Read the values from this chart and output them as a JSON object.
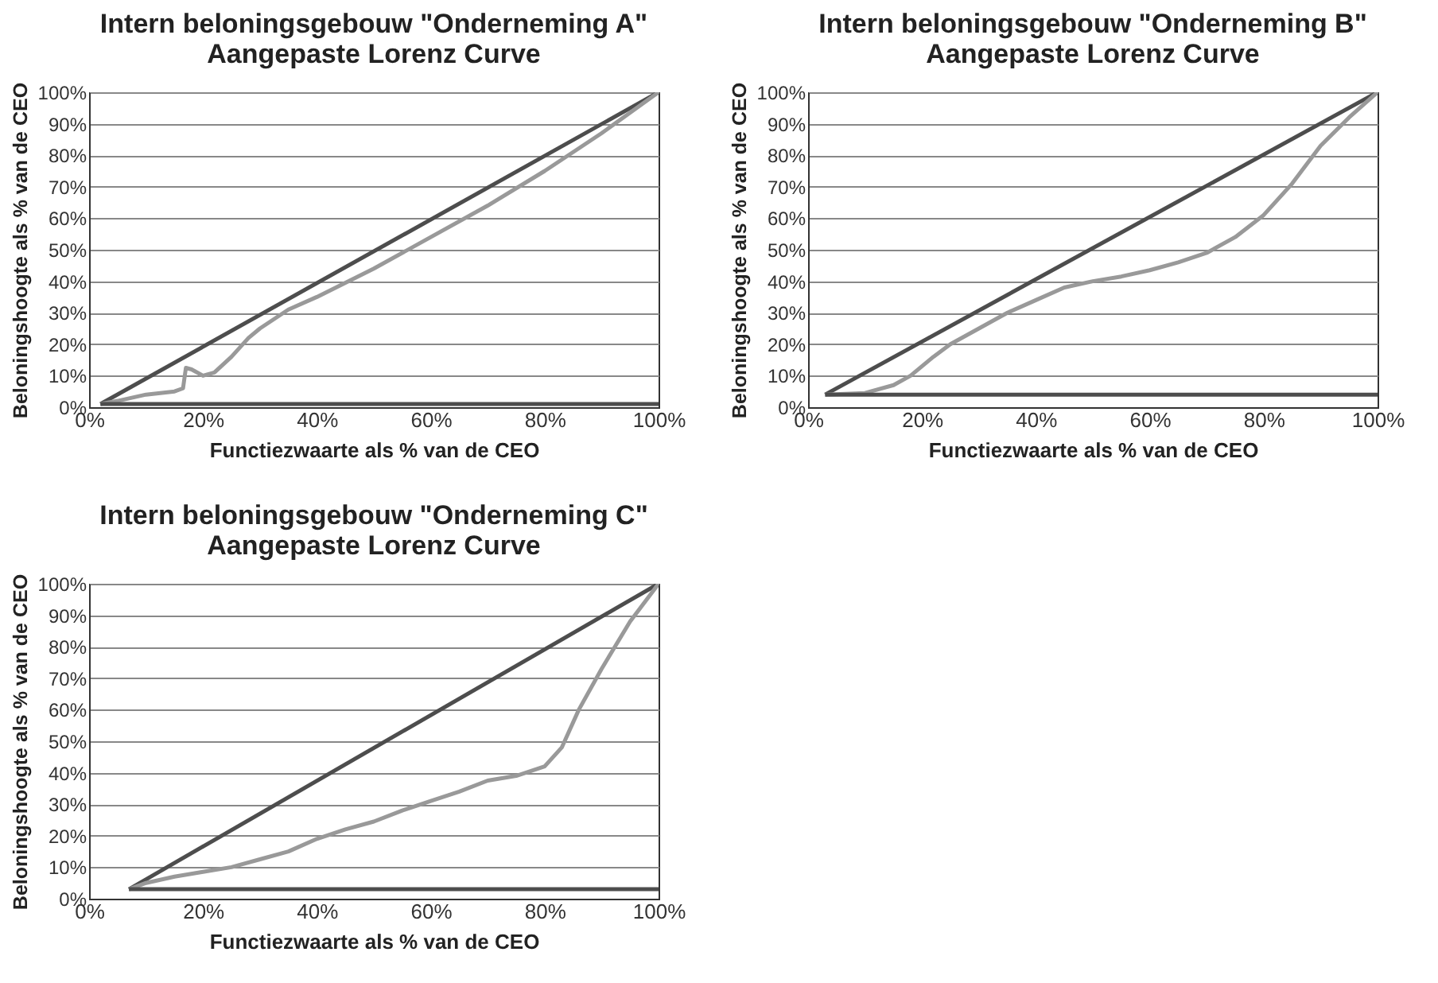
{
  "chart_data": [
    {
      "type": "line",
      "title": "Intern beloningsgebouw \"Onderneming A\"",
      "subtitle": "Aangepaste Lorenz Curve",
      "xlabel": "Functiezwaarte als % van de CEO",
      "ylabel": "Beloningshoogte als % van de CEO",
      "xlim": [
        0,
        100
      ],
      "ylim": [
        0,
        100
      ],
      "xticks": [
        {
          "value": 0,
          "label": "0%"
        },
        {
          "value": 20,
          "label": "20%"
        },
        {
          "value": 40,
          "label": "40%"
        },
        {
          "value": 60,
          "label": "60%"
        },
        {
          "value": 80,
          "label": "80%"
        },
        {
          "value": 100,
          "label": "100%"
        }
      ],
      "yticks": [
        {
          "value": 0,
          "label": "0%"
        },
        {
          "value": 10,
          "label": "10%"
        },
        {
          "value": 20,
          "label": "20%"
        },
        {
          "value": 30,
          "label": "30%"
        },
        {
          "value": 40,
          "label": "40%"
        },
        {
          "value": 50,
          "label": "50%"
        },
        {
          "value": 60,
          "label": "60%"
        },
        {
          "value": 70,
          "label": "70%"
        },
        {
          "value": 80,
          "label": "80%"
        },
        {
          "value": 90,
          "label": "90%"
        },
        {
          "value": 100,
          "label": "100%"
        }
      ],
      "grid": "y",
      "series": [
        {
          "color": "#4d4d4d",
          "x": [
            2,
            100
          ],
          "values": [
            1,
            100
          ]
        },
        {
          "color": "#999999",
          "x": [
            2,
            5,
            10,
            15,
            16.5,
            17,
            18,
            20,
            22,
            25,
            28,
            30,
            35,
            40,
            50,
            60,
            70,
            80,
            90,
            100
          ],
          "values": [
            1,
            2,
            4,
            5,
            6,
            12.5,
            12,
            10,
            11,
            16,
            22,
            25,
            31,
            35,
            44,
            54,
            64,
            75,
            87,
            100
          ]
        },
        {
          "color": "#4d4d4d",
          "x": [
            2,
            100
          ],
          "values": [
            1,
            1
          ]
        }
      ]
    },
    {
      "type": "line",
      "title": "Intern beloningsgebouw \"Onderneming B\"",
      "subtitle": "Aangepaste Lorenz Curve",
      "xlabel": "Functiezwaarte als % van de CEO",
      "ylabel": "Beloningshoogte als % van de CEO",
      "xlim": [
        0,
        100
      ],
      "ylim": [
        0,
        100
      ],
      "xticks": [
        {
          "value": 0,
          "label": "0%"
        },
        {
          "value": 20,
          "label": "20%"
        },
        {
          "value": 40,
          "label": "40%"
        },
        {
          "value": 60,
          "label": "60%"
        },
        {
          "value": 80,
          "label": "80%"
        },
        {
          "value": 100,
          "label": "100%"
        }
      ],
      "yticks": [
        {
          "value": 0,
          "label": "0%"
        },
        {
          "value": 10,
          "label": "10%"
        },
        {
          "value": 20,
          "label": "20%"
        },
        {
          "value": 30,
          "label": "30%"
        },
        {
          "value": 40,
          "label": "40%"
        },
        {
          "value": 50,
          "label": "50%"
        },
        {
          "value": 60,
          "label": "60%"
        },
        {
          "value": 70,
          "label": "70%"
        },
        {
          "value": 80,
          "label": "80%"
        },
        {
          "value": 90,
          "label": "90%"
        },
        {
          "value": 100,
          "label": "100%"
        }
      ],
      "grid": "y",
      "series": [
        {
          "color": "#4d4d4d",
          "x": [
            3,
            100
          ],
          "values": [
            4,
            100
          ]
        },
        {
          "color": "#999999",
          "x": [
            3,
            10,
            15,
            18,
            22,
            25,
            30,
            35,
            40,
            45,
            50,
            55,
            60,
            65,
            70,
            75,
            80,
            85,
            90,
            95,
            100
          ],
          "values": [
            4,
            4.5,
            7,
            10,
            16,
            20,
            25,
            30,
            34,
            38,
            40,
            41.5,
            43.5,
            46,
            49,
            54,
            61,
            71,
            83,
            92,
            100
          ]
        },
        {
          "color": "#4d4d4d",
          "x": [
            3,
            100
          ],
          "values": [
            4,
            4
          ]
        }
      ]
    },
    {
      "type": "line",
      "title": "Intern beloningsgebouw \"Onderneming C\"",
      "subtitle": "Aangepaste Lorenz Curve",
      "xlabel": "Functiezwaarte als % van de CEO",
      "ylabel": "Beloningshoogte als % van de CEO",
      "xlim": [
        0,
        100
      ],
      "ylim": [
        0,
        100
      ],
      "xticks": [
        {
          "value": 0,
          "label": "0%"
        },
        {
          "value": 20,
          "label": "20%"
        },
        {
          "value": 40,
          "label": "40%"
        },
        {
          "value": 60,
          "label": "60%"
        },
        {
          "value": 80,
          "label": "80%"
        },
        {
          "value": 100,
          "label": "100%"
        }
      ],
      "yticks": [
        {
          "value": 0,
          "label": "0%"
        },
        {
          "value": 10,
          "label": "10%"
        },
        {
          "value": 20,
          "label": "20%"
        },
        {
          "value": 30,
          "label": "30%"
        },
        {
          "value": 40,
          "label": "40%"
        },
        {
          "value": 50,
          "label": "50%"
        },
        {
          "value": 60,
          "label": "60%"
        },
        {
          "value": 70,
          "label": "70%"
        },
        {
          "value": 80,
          "label": "80%"
        },
        {
          "value": 90,
          "label": "90%"
        },
        {
          "value": 100,
          "label": "100%"
        }
      ],
      "grid": "y",
      "series": [
        {
          "color": "#4d4d4d",
          "x": [
            7,
            100
          ],
          "values": [
            3,
            100
          ]
        },
        {
          "color": "#999999",
          "x": [
            7,
            10,
            15,
            20,
            25,
            30,
            35,
            40,
            45,
            50,
            55,
            60,
            65,
            70,
            75,
            80,
            83,
            86,
            90,
            95,
            100
          ],
          "values": [
            3,
            5,
            7,
            8.5,
            10,
            12.5,
            15,
            19,
            22,
            24.5,
            28,
            31,
            34,
            37.5,
            39,
            42,
            48,
            60,
            73,
            88,
            100
          ]
        },
        {
          "color": "#4d4d4d",
          "x": [
            7,
            100
          ],
          "values": [
            3,
            3
          ]
        }
      ]
    }
  ]
}
